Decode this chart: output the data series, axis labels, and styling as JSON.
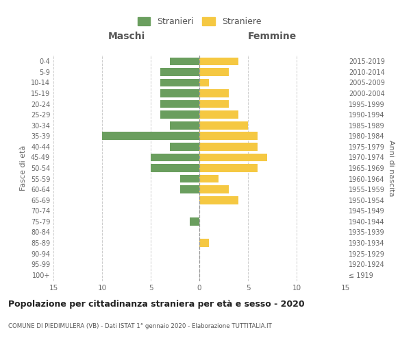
{
  "age_groups": [
    "100+",
    "95-99",
    "90-94",
    "85-89",
    "80-84",
    "75-79",
    "70-74",
    "65-69",
    "60-64",
    "55-59",
    "50-54",
    "45-49",
    "40-44",
    "35-39",
    "30-34",
    "25-29",
    "20-24",
    "15-19",
    "10-14",
    "5-9",
    "0-4"
  ],
  "birth_years": [
    "≤ 1919",
    "1920-1924",
    "1925-1929",
    "1930-1934",
    "1935-1939",
    "1940-1944",
    "1945-1949",
    "1950-1954",
    "1955-1959",
    "1960-1964",
    "1965-1969",
    "1970-1974",
    "1975-1979",
    "1980-1984",
    "1985-1989",
    "1990-1994",
    "1995-1999",
    "2000-2004",
    "2005-2009",
    "2010-2014",
    "2015-2019"
  ],
  "maschi": [
    0,
    0,
    0,
    0,
    0,
    1,
    0,
    0,
    2,
    2,
    5,
    5,
    3,
    10,
    3,
    4,
    4,
    4,
    4,
    4,
    3
  ],
  "femmine": [
    0,
    0,
    0,
    1,
    0,
    0,
    0,
    4,
    3,
    2,
    6,
    7,
    6,
    6,
    5,
    4,
    3,
    3,
    1,
    3,
    4
  ],
  "color_maschi": "#6a9e5e",
  "color_femmine": "#f5c842",
  "title": "Popolazione per cittadinanza straniera per età e sesso - 2020",
  "subtitle": "COMUNE DI PIEDIMULERA (VB) - Dati ISTAT 1° gennaio 2020 - Elaborazione TUTTITALIA.IT",
  "xlabel_left": "Maschi",
  "xlabel_right": "Femmine",
  "ylabel": "Fasce di età",
  "ylabel_right": "Anni di nascita",
  "legend_maschi": "Stranieri",
  "legend_femmine": "Straniere",
  "xlim": 15,
  "background_color": "#ffffff",
  "grid_color": "#cccccc"
}
